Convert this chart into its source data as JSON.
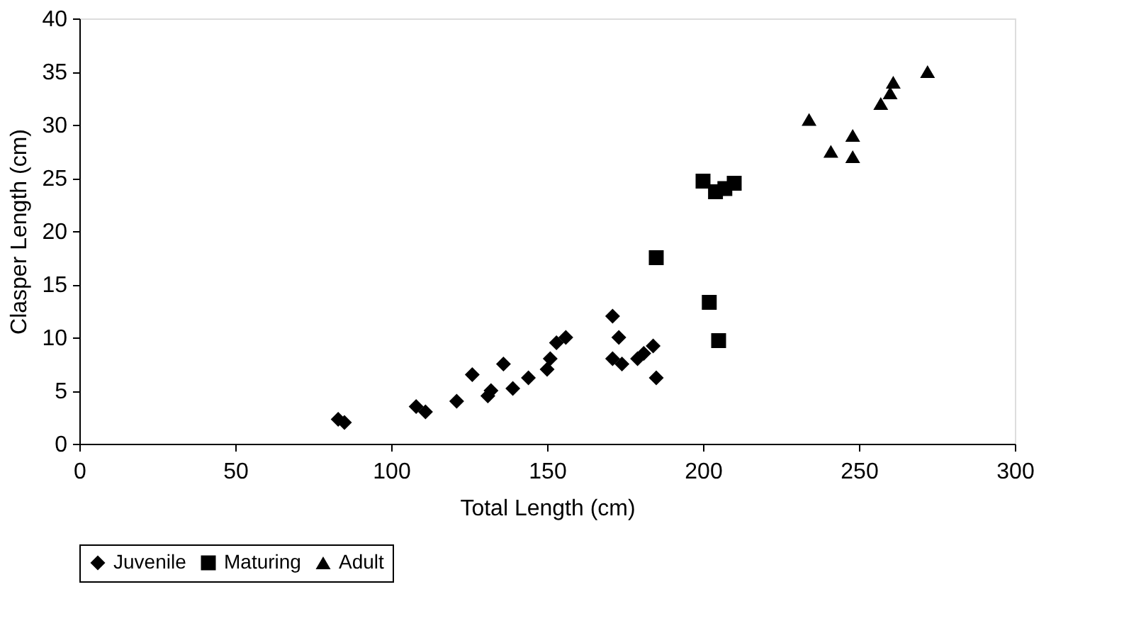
{
  "chart_data": {
    "type": "scatter",
    "xlabel": "Total Length (cm)",
    "ylabel": "Clasper Length (cm)",
    "xlim": [
      0,
      300
    ],
    "xticks": [
      0,
      50,
      100,
      150,
      200,
      250,
      300
    ],
    "ylim": [
      0,
      40
    ],
    "yticks": [
      0,
      5,
      10,
      15,
      20,
      25,
      30,
      35,
      40
    ],
    "grid": false,
    "legend": "bottom",
    "series": [
      {
        "name": "Juvenile",
        "color": "#000000",
        "marker": "diamond",
        "x": [
          83,
          85,
          108,
          111,
          121,
          126,
          131,
          132,
          136,
          139,
          144,
          150,
          151,
          153,
          156,
          171,
          171,
          173,
          174,
          179,
          181,
          184,
          185
        ],
        "values": [
          2.3,
          2,
          3.5,
          3,
          4,
          6.5,
          4.5,
          5,
          7.5,
          5.2,
          6.2,
          7,
          8,
          9.5,
          10,
          12,
          8,
          10,
          7.5,
          8,
          8.5,
          9.2,
          6.2
        ]
      },
      {
        "name": "Maturing",
        "color": "#000000",
        "marker": "square",
        "x": [
          185,
          200,
          202,
          204,
          205,
          207,
          210
        ],
        "values": [
          17.5,
          24.7,
          13.3,
          23.7,
          9.7,
          24,
          24.5
        ]
      },
      {
        "name": "Adult",
        "color": "#000000",
        "marker": "triangle",
        "x": [
          234,
          241,
          248,
          248,
          257,
          260,
          261,
          272
        ],
        "values": [
          30.5,
          27.5,
          29,
          27,
          32,
          33,
          34,
          35
        ]
      }
    ]
  }
}
